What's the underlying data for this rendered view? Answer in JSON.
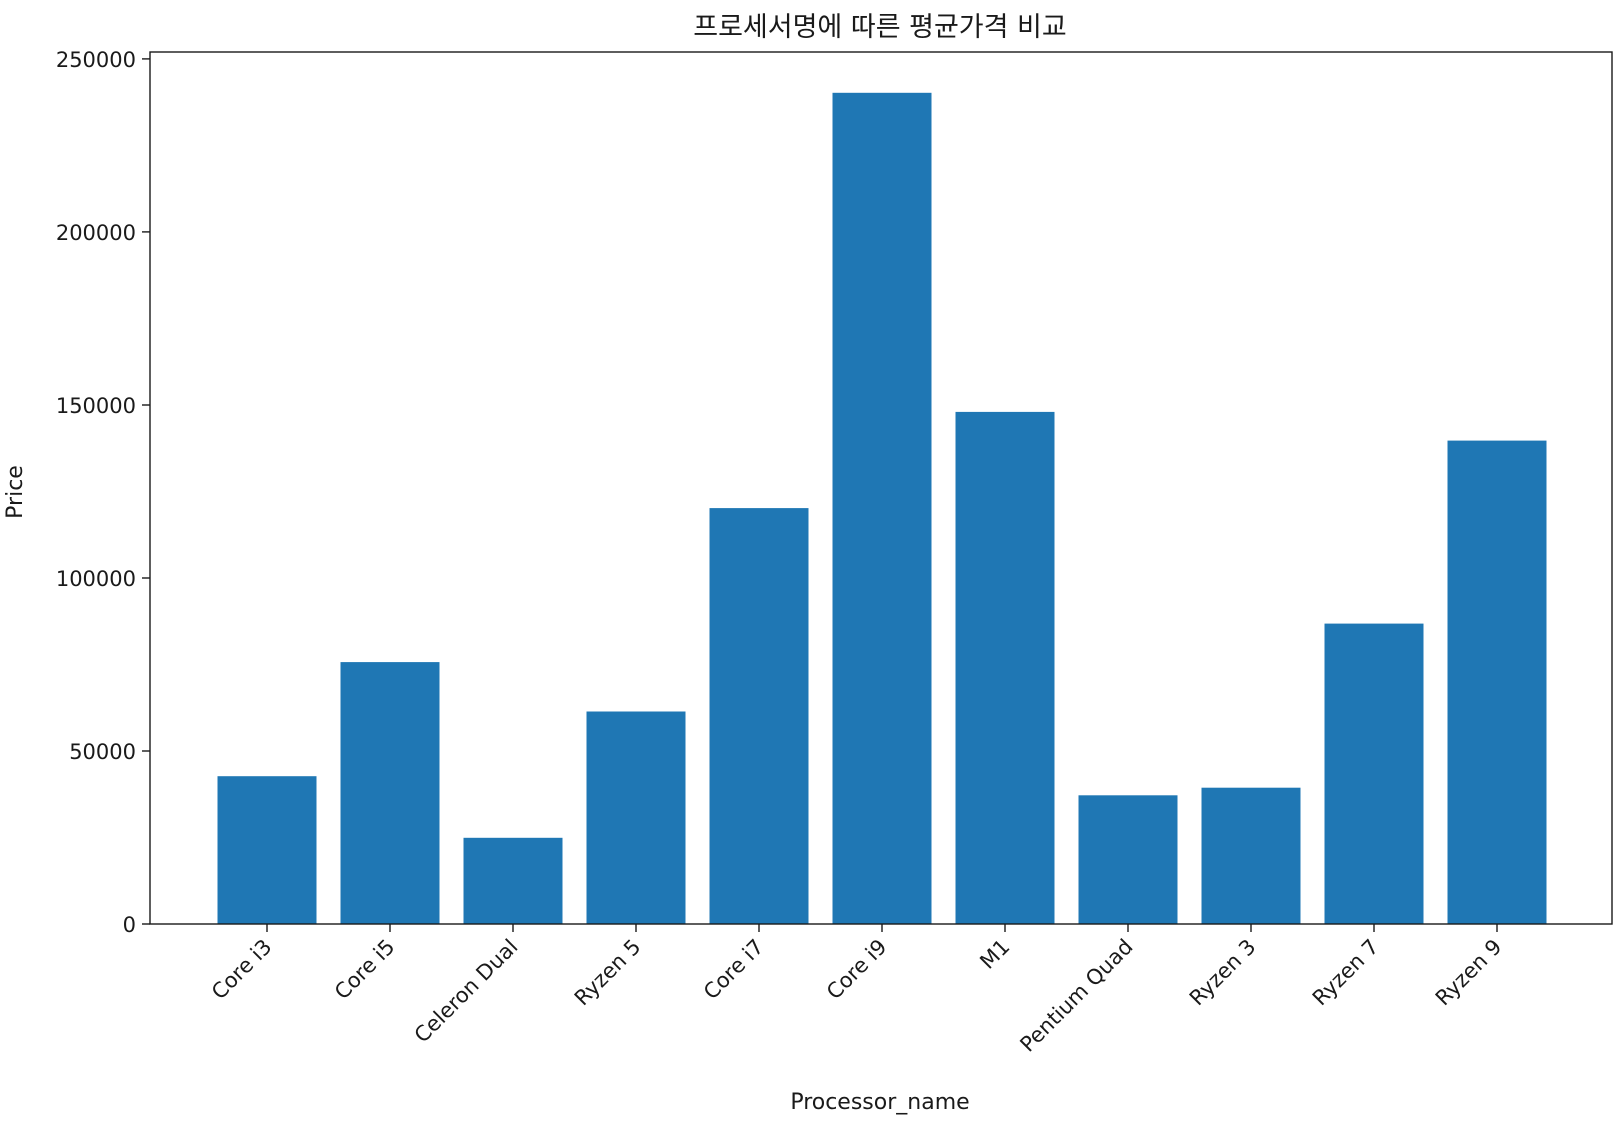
{
  "chart_data": {
    "type": "bar",
    "title": "프로세서명에 따른 평균가격 비교",
    "xlabel": "Processor_name",
    "ylabel": "Price",
    "categories": [
      "Core i3",
      "Core i5",
      "Celeron Dual",
      "Ryzen 5",
      "Core i7",
      "Core i9",
      "M1",
      "Pentium Quad",
      "Ryzen 3",
      "Ryzen 7",
      "Ryzen 9"
    ],
    "values": [
      42700,
      75700,
      24900,
      61400,
      120200,
      240200,
      148000,
      37200,
      39400,
      86800,
      139700
    ],
    "ylim": [
      0,
      252000
    ],
    "yticks": [
      0,
      50000,
      100000,
      150000,
      200000,
      250000
    ],
    "bar_color": "#1f77b4",
    "grid": false,
    "legend": "none"
  }
}
